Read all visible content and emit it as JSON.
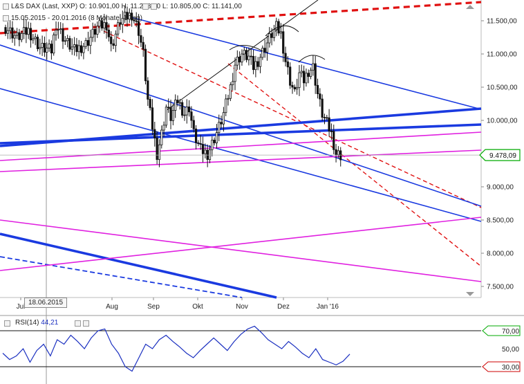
{
  "header": {
    "line1_prefix": "L&S DAX (Last, XXP)",
    "open": "O: 10.901,00",
    "high": "H: 11.278,00",
    "low": "L: 10.805,00",
    "close": "C: 11.141,00",
    "line2": "15.05.2015 - 20.01.2016 (8 Monate, 1 Tag)"
  },
  "crosshair_date": "18.06.2015",
  "rsi": {
    "name": "RSI(14)",
    "value": "44,21",
    "upper_label": "70,00",
    "mid_label": "50,00",
    "lower_label": "30,00"
  },
  "colors": {
    "candle": "#111111",
    "trend_blue": "#1a3ae0",
    "trend_red": "#e01010",
    "trend_magenta": "#e020e0",
    "rsi": "#1a2fc0",
    "current": "#00aa00"
  },
  "chart_data": {
    "type": "candlestick",
    "instrument": "L&S DAX",
    "y_ticks": [
      "11.500,00",
      "11.000,00",
      "10.500,00",
      "10.000,00",
      "9.000,00",
      "8.500,00",
      "8.000,00",
      "7.500,00"
    ],
    "y_tick_values": [
      11500,
      11000,
      10500,
      10000,
      9000,
      8500,
      8000,
      7500
    ],
    "x_ticks": [
      "Jul",
      "Aug",
      "Sep",
      "Okt",
      "Nov",
      "Dez",
      "Jan '16"
    ],
    "current_price_label": "9.478,09",
    "current_price": 9478.09,
    "price_path": [
      [
        0,
        11400
      ],
      [
        5,
        11250
      ],
      [
        10,
        11350
      ],
      [
        15,
        11100
      ],
      [
        20,
        11050
      ],
      [
        22,
        11450
      ],
      [
        26,
        11200
      ],
      [
        30,
        11050
      ],
      [
        35,
        11150
      ],
      [
        40,
        11400
      ],
      [
        44,
        11450
      ],
      [
        46,
        11100
      ],
      [
        50,
        11500
      ],
      [
        55,
        11600
      ],
      [
        58,
        11350
      ],
      [
        60,
        11000
      ],
      [
        62,
        10300
      ],
      [
        64,
        9900
      ],
      [
        66,
        9500
      ],
      [
        68,
        9800
      ],
      [
        70,
        10200
      ],
      [
        72,
        10050
      ],
      [
        75,
        10300
      ],
      [
        78,
        10100
      ],
      [
        80,
        10200
      ],
      [
        82,
        9800
      ],
      [
        85,
        9550
      ],
      [
        88,
        9500
      ],
      [
        90,
        9650
      ],
      [
        93,
        9900
      ],
      [
        95,
        10100
      ],
      [
        98,
        10500
      ],
      [
        100,
        10850
      ],
      [
        103,
        11000
      ],
      [
        106,
        10950
      ],
      [
        108,
        10800
      ],
      [
        110,
        10900
      ],
      [
        113,
        11100
      ],
      [
        116,
        11300
      ],
      [
        118,
        11400
      ],
      [
        120,
        11300
      ],
      [
        122,
        10900
      ],
      [
        124,
        10600
      ],
      [
        126,
        10400
      ],
      [
        128,
        10700
      ],
      [
        130,
        10600
      ],
      [
        132,
        10750
      ],
      [
        134,
        10800
      ],
      [
        136,
        10400
      ],
      [
        138,
        10100
      ],
      [
        140,
        9950
      ],
      [
        142,
        9800
      ],
      [
        144,
        9500
      ],
      [
        146,
        9478
      ]
    ],
    "rsi_series": [
      45,
      38,
      42,
      50,
      35,
      48,
      55,
      42,
      60,
      55,
      65,
      58,
      50,
      62,
      70,
      72,
      55,
      45,
      30,
      25,
      40,
      55,
      50,
      60,
      65,
      58,
      52,
      45,
      40,
      48,
      55,
      62,
      55,
      48,
      58,
      66,
      72,
      75,
      68,
      60,
      55,
      50,
      58,
      52,
      45,
      40,
      50,
      38,
      35,
      32,
      36,
      44
    ],
    "rsi_ylim": [
      20,
      80
    ]
  }
}
